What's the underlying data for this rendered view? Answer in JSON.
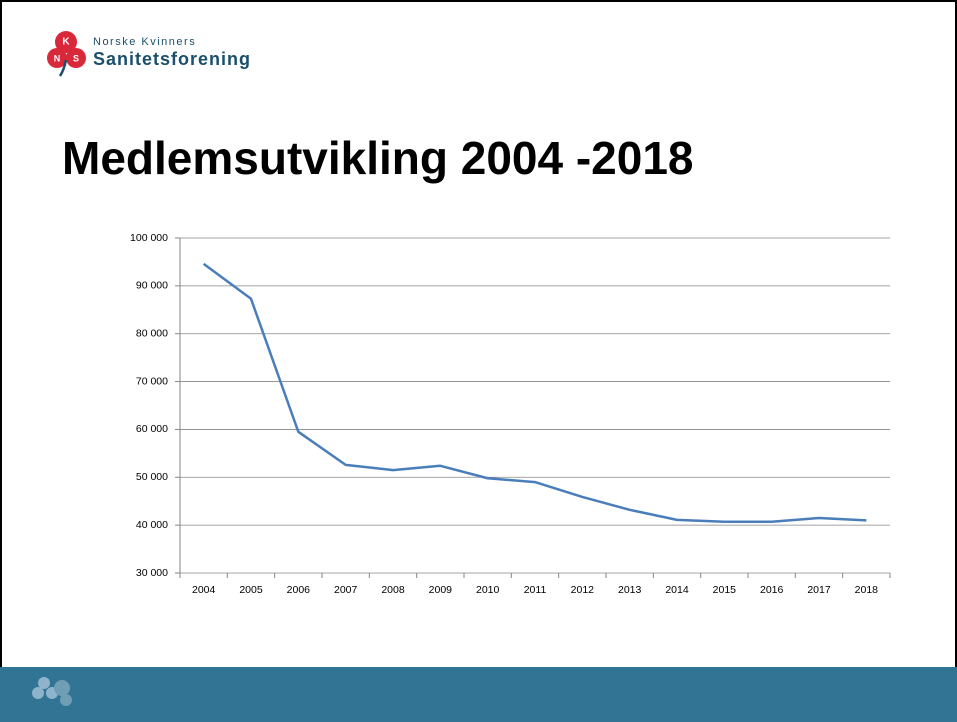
{
  "logo": {
    "letters": [
      "K",
      "N",
      "S"
    ],
    "line1": "Norske Kvinners",
    "line2": "Sanitetsforening"
  },
  "slide_title": "Medlemsutvikling 2004 -2018",
  "chart_data": {
    "type": "line",
    "categories": [
      "2004",
      "2005",
      "2006",
      "2007",
      "2008",
      "2009",
      "2010",
      "2011",
      "2012",
      "2013",
      "2014",
      "2015",
      "2016",
      "2017",
      "2018"
    ],
    "values": [
      94600,
      87300,
      59500,
      52600,
      51500,
      52400,
      49800,
      49000,
      45900,
      43200,
      41100,
      40700,
      40700,
      41500,
      41000
    ],
    "color": "#4a7ebb",
    "ylim": [
      30000,
      100000
    ],
    "yticks": [
      {
        "value": 30000,
        "label": "30 000"
      },
      {
        "value": 40000,
        "label": "40 000"
      },
      {
        "value": 50000,
        "label": "50 000"
      },
      {
        "value": 60000,
        "label": "60 000"
      },
      {
        "value": 70000,
        "label": "70 000"
      },
      {
        "value": 80000,
        "label": "80 000"
      },
      {
        "value": 90000,
        "label": "90 000"
      },
      {
        "value": 100000,
        "label": "100 000"
      }
    ],
    "grid": true
  }
}
